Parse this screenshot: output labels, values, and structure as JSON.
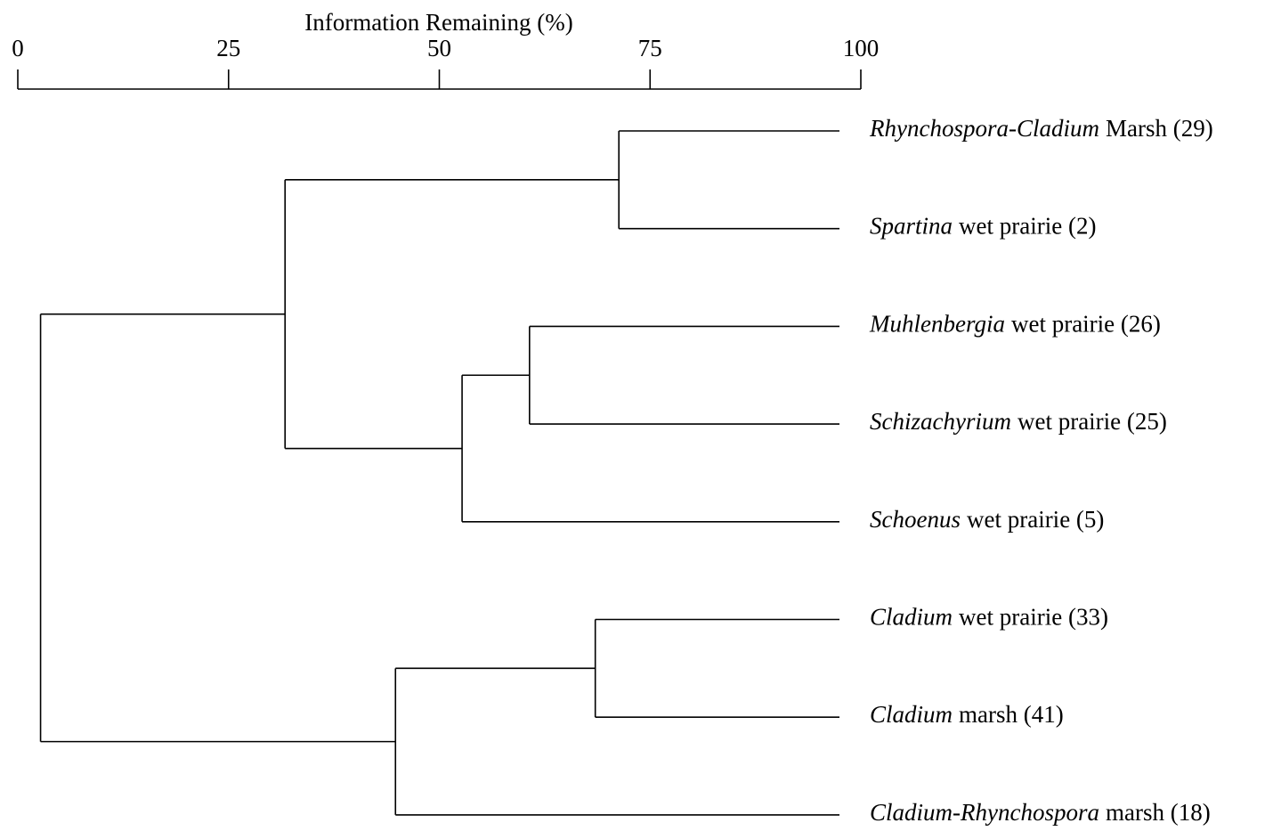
{
  "chart_data": {
    "type": "dendrogram",
    "xlabel": "Information Remaining (%)",
    "xlim": [
      0,
      100
    ],
    "xticks": [
      0,
      25,
      50,
      75,
      100
    ],
    "color": "#000000",
    "tree": {
      "height": 2.7,
      "children": [
        {
          "height": 31.7,
          "children": [
            {
              "height": 71.3,
              "children": [
                {
                  "genus": "Rhynchospora-Cladium",
                  "rest": "Marsh (29)"
                },
                {
                  "genus": "Spartina",
                  "rest": "wet prairie (2)"
                }
              ]
            },
            {
              "height": 52.7,
              "children": [
                {
                  "height": 60.7,
                  "children": [
                    {
                      "genus": "Muhlenbergia",
                      "rest": "wet prairie (26)"
                    },
                    {
                      "genus": "Schizachyrium",
                      "rest": "wet prairie (25)"
                    }
                  ]
                },
                {
                  "genus": "Schoenus",
                  "rest": "wet prairie (5)"
                }
              ]
            }
          ]
        },
        {
          "height": 44.8,
          "children": [
            {
              "height": 68.5,
              "children": [
                {
                  "genus": "Cladium",
                  "rest": "wet prairie (33)"
                },
                {
                  "genus": "Cladium",
                  "rest": "marsh (41)"
                }
              ]
            },
            {
              "genus": "Cladium-Rhynchospora",
              "rest": "marsh (18)"
            }
          ]
        }
      ]
    }
  }
}
